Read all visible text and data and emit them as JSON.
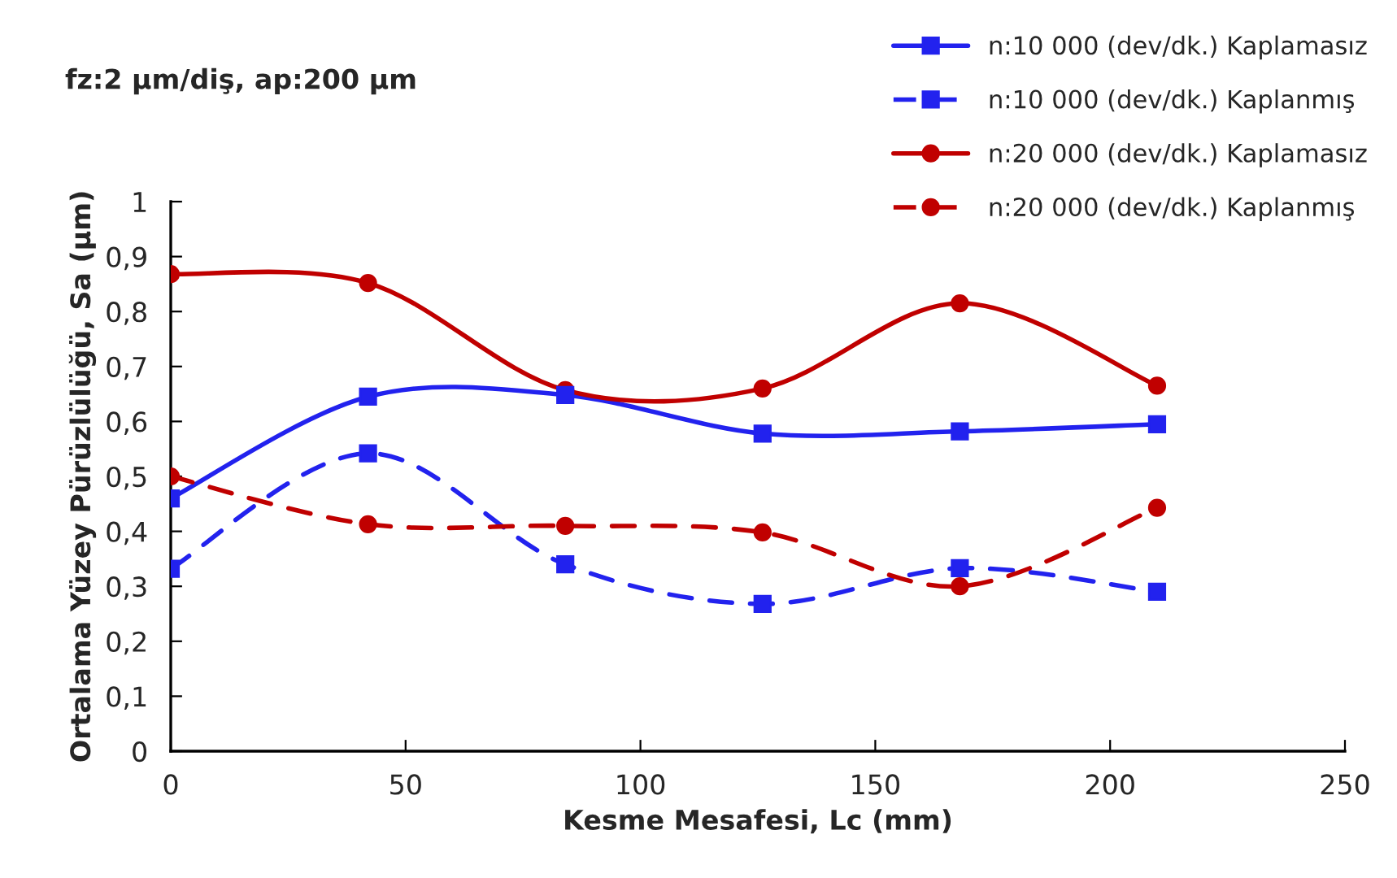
{
  "chart_data": {
    "type": "line",
    "title": "fz:2 µm/diş, ap:200 µm",
    "xlabel": "Kesme Mesafesi, Lc (mm)",
    "ylabel": "Ortalama Yüzey Pürüzlülüğü, Sa (µm)",
    "x": [
      0,
      42,
      84,
      126,
      168,
      210
    ],
    "series": [
      {
        "name": "n:10 000 (dev/dk.) Kaplamasız",
        "color": "#2222ee",
        "marker": "square",
        "line_style": "solid",
        "values": [
          0.46,
          0.645,
          0.648,
          0.578,
          0.582,
          0.595
        ]
      },
      {
        "name": "n:10 000 (dev/dk.) Kaplanmış",
        "color": "#2222ee",
        "marker": "square",
        "line_style": "dashed",
        "values": [
          0.332,
          0.542,
          0.34,
          0.268,
          0.333,
          0.29
        ]
      },
      {
        "name": "n:20 000 (dev/dk.) Kaplamasız",
        "color": "#c00000",
        "marker": "circle",
        "line_style": "solid",
        "values": [
          0.868,
          0.852,
          0.657,
          0.66,
          0.815,
          0.665
        ]
      },
      {
        "name": "n:20 000 (dev/dk.) Kaplanmış",
        "color": "#c00000",
        "marker": "circle",
        "line_style": "dashed",
        "values": [
          0.5,
          0.413,
          0.41,
          0.398,
          0.3,
          0.443
        ]
      }
    ],
    "xlim": [
      0,
      250
    ],
    "xticks": [
      0,
      50,
      100,
      150,
      200,
      250
    ],
    "ylim": [
      0,
      1
    ],
    "yticks": [
      0,
      {
        "value": 0.1,
        "label": "0,1"
      },
      {
        "value": 0.2,
        "label": "0,2"
      },
      {
        "value": 0.3,
        "label": "0,3"
      },
      {
        "value": 0.4,
        "label": "0,4"
      },
      {
        "value": 0.5,
        "label": "0,5"
      },
      {
        "value": 0.6,
        "label": "0,6"
      },
      {
        "value": 0.7,
        "label": "0,7"
      },
      {
        "value": 0.8,
        "label": "0,8"
      },
      {
        "value": 0.9,
        "label": "0,9"
      },
      1
    ],
    "grid": false,
    "legend": "top right"
  }
}
